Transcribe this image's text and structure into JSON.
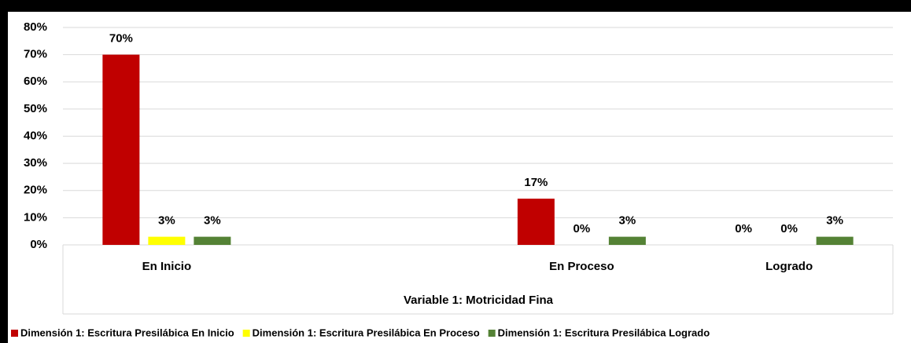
{
  "chart_data": {
    "type": "bar",
    "x_label": "Variable 1: Motricidad Fina",
    "categories": [
      "En Inicio",
      null,
      "En Proceso",
      "Logrado"
    ],
    "series": [
      {
        "name": "Dimensión 1: Escritura Presilábica En Inicio",
        "color": "#c00000",
        "values": [
          70,
          null,
          17,
          0
        ],
        "value_labels": [
          "70%",
          null,
          "17%",
          "0%"
        ]
      },
      {
        "name": "Dimensión 1: Escritura Presilábica En Proceso",
        "color": "#ffff00",
        "values": [
          3,
          null,
          0,
          0
        ],
        "value_labels": [
          "3%",
          null,
          "0%",
          "0%"
        ]
      },
      {
        "name": "Dimensión 1: Escritura Presilábica Logrado",
        "color": "#548235",
        "values": [
          3,
          null,
          3,
          3
        ],
        "value_labels": [
          "3%",
          null,
          "3%",
          "3%"
        ]
      }
    ],
    "ylim": [
      0,
      80
    ],
    "yticks": [
      {
        "value": 0,
        "label": "0%"
      },
      {
        "value": 10,
        "label": "10%"
      },
      {
        "value": 20,
        "label": "20%"
      },
      {
        "value": 30,
        "label": "30%"
      },
      {
        "value": 40,
        "label": "40%"
      },
      {
        "value": 50,
        "label": "50%"
      },
      {
        "value": 60,
        "label": "60%"
      },
      {
        "value": 70,
        "label": "70%"
      },
      {
        "value": 80,
        "label": "80%"
      }
    ],
    "grid": true,
    "legend": "bottom"
  }
}
